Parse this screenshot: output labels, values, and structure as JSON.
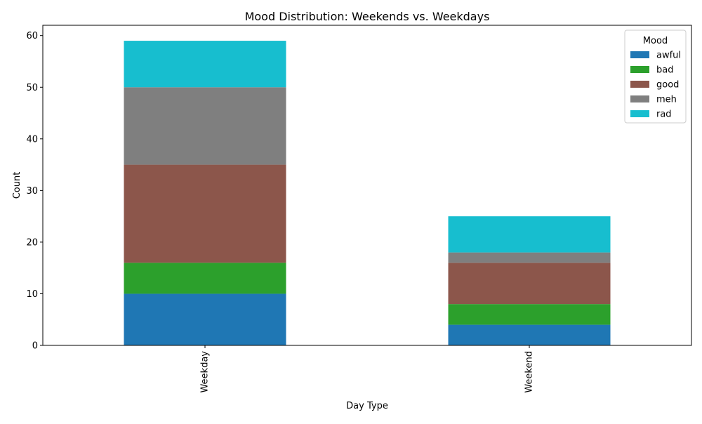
{
  "chart_data": {
    "type": "bar",
    "stacked": true,
    "title": "Mood Distribution: Weekends vs. Weekdays",
    "xlabel": "Day Type",
    "ylabel": "Count",
    "categories": [
      "Weekday",
      "Weekend"
    ],
    "series": [
      {
        "name": "awful",
        "color": "#1f77b4",
        "values": [
          10,
          4
        ]
      },
      {
        "name": "bad",
        "color": "#2ca02c",
        "values": [
          6,
          4
        ]
      },
      {
        "name": "good",
        "color": "#8c564b",
        "values": [
          19,
          8
        ]
      },
      {
        "name": "meh",
        "color": "#7f7f7f",
        "values": [
          15,
          2
        ]
      },
      {
        "name": "rad",
        "color": "#17becf",
        "values": [
          9,
          7
        ]
      }
    ],
    "ylim": [
      0,
      62
    ],
    "yticks": [
      0,
      10,
      20,
      30,
      40,
      50,
      60
    ],
    "grid": false,
    "legend": {
      "title": "Mood",
      "position": "top-right"
    }
  }
}
